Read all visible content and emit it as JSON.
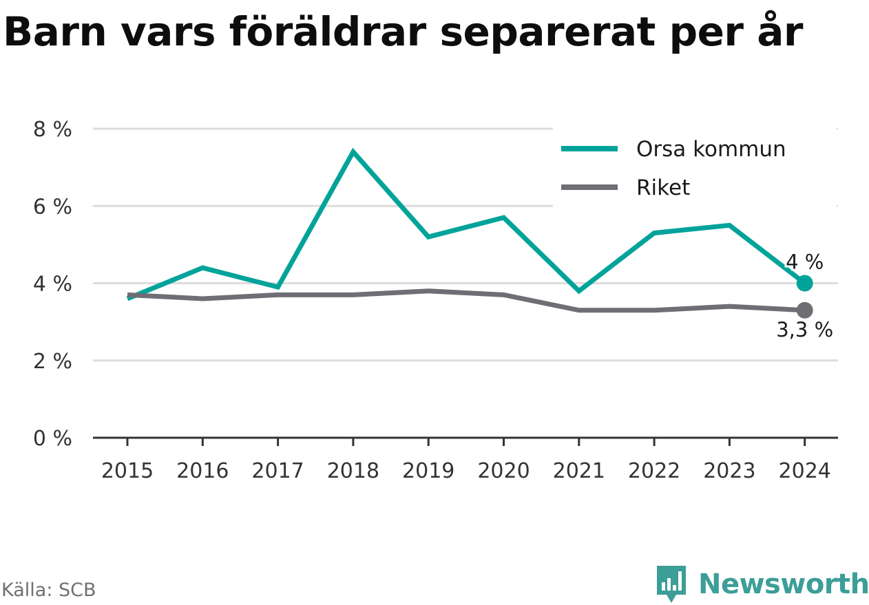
{
  "title": "Barn vars föräldrar separerat per år",
  "source": "Källa: SCB",
  "brand": {
    "name": "Newsworthy",
    "icon": "newsworthy-logo-icon",
    "color": "#3b9e97"
  },
  "chart_data": {
    "type": "line",
    "title": "Barn vars föräldrar separerat per år",
    "x": [
      "2015",
      "2016",
      "2017",
      "2018",
      "2019",
      "2020",
      "2021",
      "2022",
      "2023",
      "2024"
    ],
    "series": [
      {
        "name": "Orsa kommun",
        "color": "#00a39a",
        "values": [
          3.6,
          4.4,
          3.9,
          7.4,
          5.2,
          5.7,
          3.8,
          5.3,
          5.5,
          4.0
        ],
        "end_label": "4 %"
      },
      {
        "name": "Riket",
        "color": "#6f6e74",
        "values": [
          3.7,
          3.6,
          3.7,
          3.7,
          3.8,
          3.7,
          3.3,
          3.3,
          3.4,
          3.3
        ],
        "end_label": "3,3 %"
      }
    ],
    "y_ticks": [
      {
        "value": 0,
        "label": "0 %"
      },
      {
        "value": 2,
        "label": "2 %"
      },
      {
        "value": 4,
        "label": "4 %"
      },
      {
        "value": 6,
        "label": "6 %"
      },
      {
        "value": 8,
        "label": "8 %"
      }
    ],
    "ylim": [
      0,
      8
    ],
    "xlabel": "",
    "ylabel": "",
    "grid": true,
    "legend": "top-right"
  }
}
